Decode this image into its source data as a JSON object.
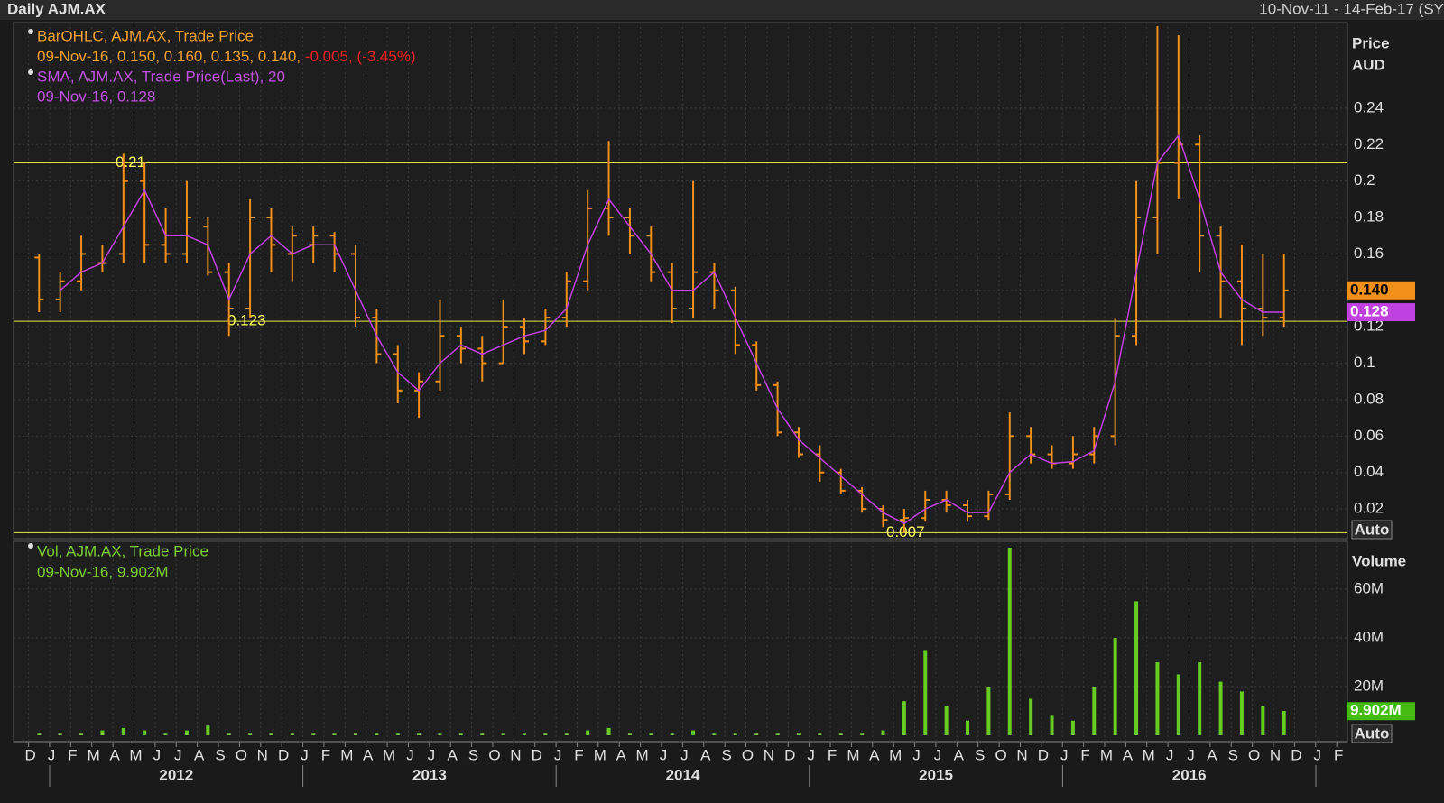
{
  "chart_data": {
    "type": "ohlc",
    "title": "Daily AJM.AX",
    "date_range": "10-Nov-11 - 14-Feb-17 (SY",
    "categories": [
      "D",
      "J",
      "F",
      "M",
      "A",
      "M",
      "J",
      "J",
      "A",
      "S",
      "O",
      "N",
      "D",
      "J",
      "F",
      "M",
      "A",
      "M",
      "J",
      "J",
      "A",
      "S",
      "O",
      "N",
      "D",
      "J",
      "F",
      "M",
      "A",
      "M",
      "J",
      "J",
      "A",
      "S",
      "O",
      "N",
      "D",
      "J",
      "F",
      "M",
      "A",
      "M",
      "J",
      "J",
      "A",
      "S",
      "O",
      "N",
      "D",
      "J",
      "F",
      "M",
      "A",
      "M",
      "J",
      "J",
      "A",
      "S",
      "O",
      "N",
      "D",
      "J",
      "F"
    ],
    "years": [
      "2012",
      "2013",
      "2014",
      "2015",
      "2016"
    ],
    "y_label": "Price",
    "y_unit": "AUD",
    "ylim": [
      0.0037,
      0.287
    ],
    "yticks": [
      0.02,
      0.04,
      0.06,
      0.08,
      0.1,
      0.12,
      0.14,
      0.16,
      0.18,
      0.2,
      0.22,
      0.24
    ],
    "series": [
      {
        "name": "BarOHLC, AJM.AX, Trade Price",
        "color": "#f0901a",
        "open": [
          0.158,
          0.135,
          0.145,
          0.155,
          0.16,
          0.2,
          0.165,
          0.16,
          0.175,
          0.15,
          0.13,
          0.18,
          0.16,
          0.165,
          0.17,
          0.16,
          0.125,
          0.105,
          0.085,
          0.09,
          0.115,
          0.108,
          0.1,
          0.12,
          0.112,
          0.125,
          0.145,
          0.185,
          0.18,
          0.17,
          0.15,
          0.13,
          0.15,
          0.14,
          0.11,
          0.088,
          0.062,
          0.05,
          0.04,
          0.03,
          0.02,
          0.014,
          0.015,
          0.025,
          0.022,
          0.016,
          0.028,
          0.06,
          0.05,
          0.045,
          0.05,
          0.06,
          0.115,
          0.18,
          0.21,
          0.22,
          0.17,
          0.145,
          0.13,
          0.125,
          null,
          null,
          null
        ],
        "high": [
          0.16,
          0.15,
          0.17,
          0.165,
          0.215,
          0.21,
          0.185,
          0.2,
          0.18,
          0.155,
          0.19,
          0.185,
          0.175,
          0.175,
          0.172,
          0.165,
          0.13,
          0.11,
          0.095,
          0.135,
          0.12,
          0.115,
          0.135,
          0.125,
          0.13,
          0.15,
          0.195,
          0.222,
          0.185,
          0.175,
          0.155,
          0.2,
          0.155,
          0.142,
          0.112,
          0.09,
          0.065,
          0.055,
          0.042,
          0.032,
          0.022,
          0.02,
          0.03,
          0.03,
          0.025,
          0.03,
          0.073,
          0.065,
          0.055,
          0.06,
          0.065,
          0.125,
          0.2,
          0.285,
          0.28,
          0.225,
          0.175,
          0.165,
          0.16,
          0.16,
          null,
          null,
          null
        ],
        "low": [
          0.128,
          0.128,
          0.14,
          0.15,
          0.155,
          0.155,
          0.155,
          0.155,
          0.148,
          0.115,
          0.125,
          0.15,
          0.145,
          0.155,
          0.15,
          0.12,
          0.1,
          0.078,
          0.07,
          0.085,
          0.1,
          0.09,
          0.1,
          0.105,
          0.11,
          0.12,
          0.14,
          0.17,
          0.16,
          0.145,
          0.122,
          0.125,
          0.13,
          0.105,
          0.085,
          0.06,
          0.048,
          0.035,
          0.028,
          0.018,
          0.01,
          0.007,
          0.013,
          0.018,
          0.013,
          0.014,
          0.025,
          0.045,
          0.042,
          0.042,
          0.045,
          0.055,
          0.11,
          0.16,
          0.19,
          0.15,
          0.125,
          0.11,
          0.115,
          0.12,
          null,
          null,
          null
        ],
        "close": [
          0.135,
          0.145,
          0.16,
          0.155,
          0.2,
          0.165,
          0.16,
          0.18,
          0.15,
          0.13,
          0.18,
          0.165,
          0.17,
          0.17,
          0.16,
          0.125,
          0.105,
          0.085,
          0.09,
          0.115,
          0.108,
          0.1,
          0.12,
          0.112,
          0.125,
          0.145,
          0.185,
          0.18,
          0.17,
          0.15,
          0.13,
          0.15,
          0.14,
          0.11,
          0.088,
          0.062,
          0.05,
          0.04,
          0.03,
          0.02,
          0.014,
          0.015,
          0.025,
          0.022,
          0.016,
          0.028,
          0.06,
          0.05,
          0.045,
          0.05,
          0.06,
          0.115,
          0.18,
          0.21,
          0.22,
          0.17,
          0.145,
          0.13,
          0.125,
          0.14,
          null,
          null,
          null
        ]
      },
      {
        "name": "SMA, AJM.AX, Trade Price(Last),  20",
        "color": "#c040e0",
        "values": [
          null,
          0.14,
          0.15,
          0.155,
          0.175,
          0.195,
          0.17,
          0.17,
          0.165,
          0.135,
          0.16,
          0.17,
          0.16,
          0.165,
          0.165,
          0.14,
          0.115,
          0.095,
          0.085,
          0.1,
          0.11,
          0.105,
          0.11,
          0.115,
          0.118,
          0.13,
          0.165,
          0.19,
          0.175,
          0.16,
          0.14,
          0.14,
          0.15,
          0.125,
          0.1,
          0.075,
          0.058,
          0.048,
          0.038,
          0.028,
          0.018,
          0.012,
          0.02,
          0.025,
          0.018,
          0.018,
          0.04,
          0.05,
          0.045,
          0.046,
          0.052,
          0.09,
          0.15,
          0.21,
          0.225,
          0.19,
          0.15,
          0.135,
          0.128,
          0.128,
          null,
          null,
          null
        ]
      }
    ],
    "legend_values": [
      "09-Nov-16, 0.150, 0.160, 0.135, 0.140,",
      "-0.005, (-3.45%)",
      "09-Nov-16, 0.128"
    ],
    "last_values": [
      {
        "value": 0.14,
        "label": "0.140"
      },
      {
        "value": 0.128,
        "label": "0.128"
      }
    ],
    "hlines": [
      0.21,
      0.123,
      0.007
    ],
    "scale_button": "Auto",
    "volume": {
      "type": "bar",
      "name": "Vol, AJM.AX, Trade Price",
      "legend_value": "09-Nov-16, 9.902M",
      "y_label": "Volume",
      "color": "#66cc22",
      "ylim": [
        -2.6,
        79.6
      ],
      "yticks": [
        {
          "value": 20,
          "label": "20M"
        },
        {
          "value": 40,
          "label": "40M"
        },
        {
          "value": 60,
          "label": "60M"
        }
      ],
      "values": [
        1,
        1,
        1,
        2,
        3,
        2,
        1,
        2,
        4,
        1,
        1,
        1,
        1,
        1,
        1,
        1,
        1,
        1,
        1,
        1,
        1,
        1,
        1,
        1,
        1,
        1,
        2,
        3,
        1,
        1,
        1,
        2,
        1,
        1,
        1,
        1,
        1,
        1,
        1,
        1,
        2,
        14,
        35,
        12,
        6,
        20,
        77,
        15,
        8,
        6,
        20,
        40,
        55,
        30,
        25,
        30,
        22,
        18,
        12,
        10,
        null,
        null,
        null
      ],
      "last_value": {
        "value": 9.902,
        "label": "9.902M"
      },
      "scale_button": "Auto"
    }
  }
}
